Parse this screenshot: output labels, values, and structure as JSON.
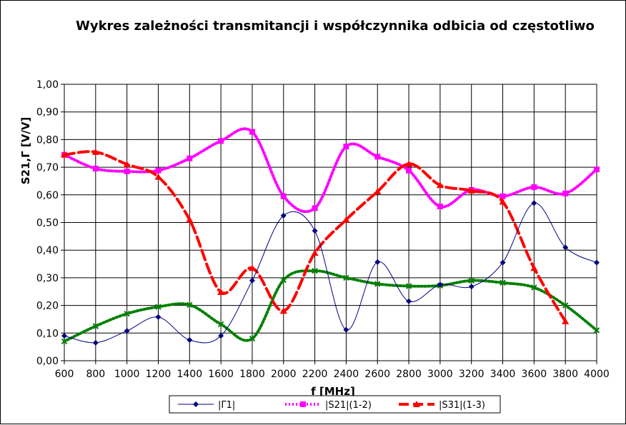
{
  "chart_data": {
    "type": "line",
    "title": "Wykres zależności transmitancji i współczynnika odbicia od częstotliwo",
    "xlabel": "f [MHz]",
    "ylabel": "S21,Γ [V/V]",
    "xlim": [
      600,
      4000
    ],
    "ylim": [
      0,
      1
    ],
    "x_ticks": [
      "600",
      "800",
      "1000",
      "1200",
      "1400",
      "1600",
      "1800",
      "2000",
      "2200",
      "2400",
      "2600",
      "2800",
      "3000",
      "3200",
      "3400",
      "3600",
      "3800",
      "4000"
    ],
    "y_ticks": [
      "0,00",
      "0,10",
      "0,20",
      "0,30",
      "0,40",
      "0,50",
      "0,60",
      "0,70",
      "0,80",
      "0,90",
      "1,00"
    ],
    "grid": true,
    "legend_position": "bottom",
    "series": [
      {
        "name": "|Γ1|",
        "color": "#000080",
        "marker": "diamond",
        "style": "solid",
        "x": [
          600,
          800,
          1000,
          1200,
          1400,
          1600,
          1800,
          2000,
          2200,
          2400,
          2600,
          2800,
          3000,
          3200,
          3400,
          3600,
          3800,
          4000
        ],
        "values": [
          0.09,
          0.065,
          0.108,
          0.158,
          0.075,
          0.09,
          0.29,
          0.525,
          0.47,
          0.112,
          0.357,
          0.215,
          0.275,
          0.268,
          0.355,
          0.57,
          0.41,
          0.355
        ]
      },
      {
        "name": "|S21|(1-2)",
        "color": "#ff00ff",
        "marker": "square",
        "style": "dotted",
        "x": [
          600,
          800,
          1000,
          1200,
          1400,
          1600,
          1800,
          2000,
          2200,
          2400,
          2600,
          2800,
          3000,
          3200,
          3400,
          3600,
          3800,
          4000
        ],
        "values": [
          0.745,
          0.695,
          0.685,
          0.688,
          0.732,
          0.795,
          0.828,
          0.595,
          0.552,
          0.775,
          0.738,
          0.688,
          0.558,
          0.618,
          0.595,
          0.628,
          0.605,
          0.692
        ]
      },
      {
        "name": "|S31|(1-3)",
        "color": "#ff0000",
        "marker": "triangle",
        "style": "dashed",
        "x": [
          600,
          800,
          1000,
          1200,
          1400,
          1600,
          1800,
          2000,
          2200,
          2400,
          2600,
          2800,
          3000,
          3200,
          3400,
          3600,
          3800
        ],
        "values": [
          0.745,
          0.755,
          0.71,
          0.665,
          0.51,
          0.248,
          0.335,
          0.18,
          0.39,
          0.51,
          0.612,
          0.712,
          0.635,
          0.615,
          0.575,
          0.335,
          0.142
        ]
      },
      {
        "name": "",
        "color": "#008000",
        "marker": "x",
        "style": "dotted",
        "x": [
          600,
          800,
          1000,
          1200,
          1400,
          1600,
          1800,
          2000,
          2200,
          2400,
          2600,
          2800,
          3000,
          3200,
          3400,
          3600,
          3800,
          4000
        ],
        "values": [
          0.07,
          0.125,
          0.17,
          0.195,
          0.202,
          0.132,
          0.08,
          0.292,
          0.325,
          0.3,
          0.278,
          0.27,
          0.272,
          0.29,
          0.282,
          0.265,
          0.2,
          0.11
        ]
      }
    ]
  }
}
